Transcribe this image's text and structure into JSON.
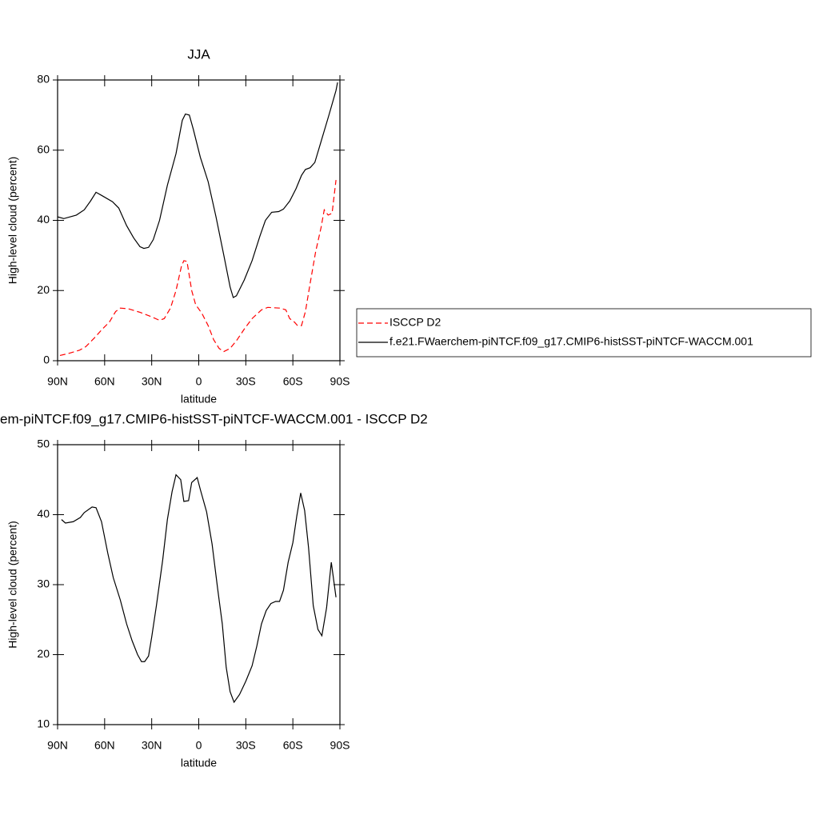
{
  "chart_data": [
    {
      "type": "line",
      "title": "JJA",
      "x_label": "latitude",
      "y_label": "High-level cloud (percent)",
      "xlim": [
        90,
        -90
      ],
      "xticks": [
        {
          "value": 90,
          "label": "90N"
        },
        {
          "value": 60,
          "label": "60N"
        },
        {
          "value": 30,
          "label": "30N"
        },
        0,
        {
          "value": -30,
          "label": "30S"
        },
        {
          "value": -60,
          "label": "60S"
        },
        {
          "value": -90,
          "label": "90S"
        }
      ],
      "ylim": [
        0,
        80
      ],
      "yticks": [
        0,
        20,
        40,
        60,
        80
      ],
      "legend": "right",
      "series": [
        {
          "name": "ISCCP D2",
          "color": "#ff0000",
          "dashed": true,
          "x": [
            88.5,
            83.5,
            76,
            72,
            66.5,
            61.5,
            57,
            53,
            50,
            45,
            37.5,
            30,
            25,
            22,
            18,
            14.5,
            11,
            9.5,
            7.5,
            4.5,
            2,
            -2,
            -6,
            -9.5,
            -13,
            -16,
            -20,
            -24.5,
            -29,
            -34,
            -40,
            -44,
            -51.5,
            -55.5,
            -58,
            -61,
            -63,
            -65.5,
            -68,
            -71,
            -74.5,
            -78,
            -80,
            -82.5,
            -85,
            -87.5
          ],
          "values": [
            1.5,
            2,
            3,
            4,
            6.5,
            9,
            11,
            14,
            15,
            14.8,
            13.8,
            12.5,
            11.5,
            12,
            15,
            20,
            27,
            28.5,
            28.3,
            20,
            16,
            13.5,
            10,
            6,
            3.5,
            2.6,
            3.5,
            6,
            9,
            12,
            14.5,
            15.2,
            15,
            14.5,
            12,
            11,
            10,
            10,
            14,
            22,
            31,
            38,
            43,
            41.5,
            42,
            51.5
          ]
        },
        {
          "name": "f.e21.FWaerchem-piNTCF.f09_g17.CMIP6-histSST-piNTCF-WACCM.001",
          "color": "#000000",
          "dashed": false,
          "x": [
            90,
            86,
            78,
            73,
            69,
            65.5,
            61.5,
            55,
            51,
            46,
            41.5,
            37.5,
            35,
            32,
            29,
            25,
            20,
            14.5,
            10.5,
            8.5,
            6,
            3.5,
            -1,
            -6,
            -11,
            -16,
            -20,
            -22,
            -24,
            -29,
            -34,
            -39,
            -42.5,
            -46.5,
            -51,
            -54,
            -58,
            -62,
            -65.5,
            -68,
            -71,
            -74,
            -78,
            -83,
            -87.5,
            -88.5
          ],
          "values": [
            41,
            40.5,
            41.5,
            43,
            45.5,
            48,
            47,
            45.3,
            43.5,
            38.5,
            35,
            32.5,
            32,
            32.3,
            34.5,
            40,
            50,
            59,
            68.5,
            70.3,
            70,
            66,
            58,
            51,
            41,
            30,
            21,
            18,
            18.5,
            23,
            28.5,
            35.5,
            40,
            42.3,
            42.5,
            43.2,
            45.5,
            49,
            52.8,
            54.5,
            55,
            56.5,
            62.5,
            70,
            77,
            79.3
          ]
        }
      ]
    },
    {
      "type": "line",
      "title": "em-piNTCF.f09_g17.CMIP6-histSST-piNTCF-WACCM.001 - ISCCP D2",
      "x_label": "latitude",
      "y_label": "High-level cloud (percent)",
      "xlim": [
        90,
        -90
      ],
      "xticks": [
        {
          "value": 90,
          "label": "90N"
        },
        {
          "value": 60,
          "label": "60N"
        },
        {
          "value": 30,
          "label": "30N"
        },
        0,
        {
          "value": -30,
          "label": "30S"
        },
        {
          "value": -60,
          "label": "60S"
        },
        {
          "value": -90,
          "label": "90S"
        }
      ],
      "ylim": [
        10,
        50
      ],
      "yticks": [
        10,
        20,
        30,
        40,
        50
      ],
      "series": [
        {
          "color": "#000000",
          "dashed": false,
          "x": [
            87.5,
            85,
            80,
            75.5,
            73,
            68,
            65.5,
            62,
            58,
            54.5,
            50,
            46,
            42.5,
            39,
            36.5,
            34.5,
            32,
            30,
            27,
            23,
            20,
            17,
            14.5,
            11.5,
            9.5,
            6.5,
            4.5,
            1,
            -1,
            -5,
            -8.5,
            -12,
            -15,
            -17.5,
            -20,
            -22.5,
            -26,
            -30,
            -34,
            -37,
            -40,
            -43,
            -46,
            -49,
            -51.5,
            -54,
            -57,
            -60,
            -62.5,
            -65,
            -67.5,
            -70,
            -73,
            -76,
            -78.5,
            -81.5,
            -84.5,
            -87.5
          ],
          "values": [
            39.3,
            38.8,
            39,
            39.6,
            40.3,
            41.1,
            41,
            39,
            34.5,
            31,
            27.8,
            24.4,
            22,
            20,
            19,
            19,
            19.8,
            22.5,
            27,
            33.5,
            39.3,
            43.3,
            45.7,
            45,
            41.9,
            42,
            44.6,
            45.3,
            43.6,
            40.4,
            35.8,
            29.5,
            24.4,
            18.2,
            14.7,
            13.2,
            14.3,
            16.2,
            18.4,
            21.2,
            24.4,
            26.3,
            27.3,
            27.6,
            27.6,
            29.2,
            33.2,
            36,
            39.8,
            43.1,
            40.6,
            35.3,
            27,
            23.6,
            22.7,
            26.7,
            33.2,
            28.2
          ]
        }
      ]
    }
  ]
}
